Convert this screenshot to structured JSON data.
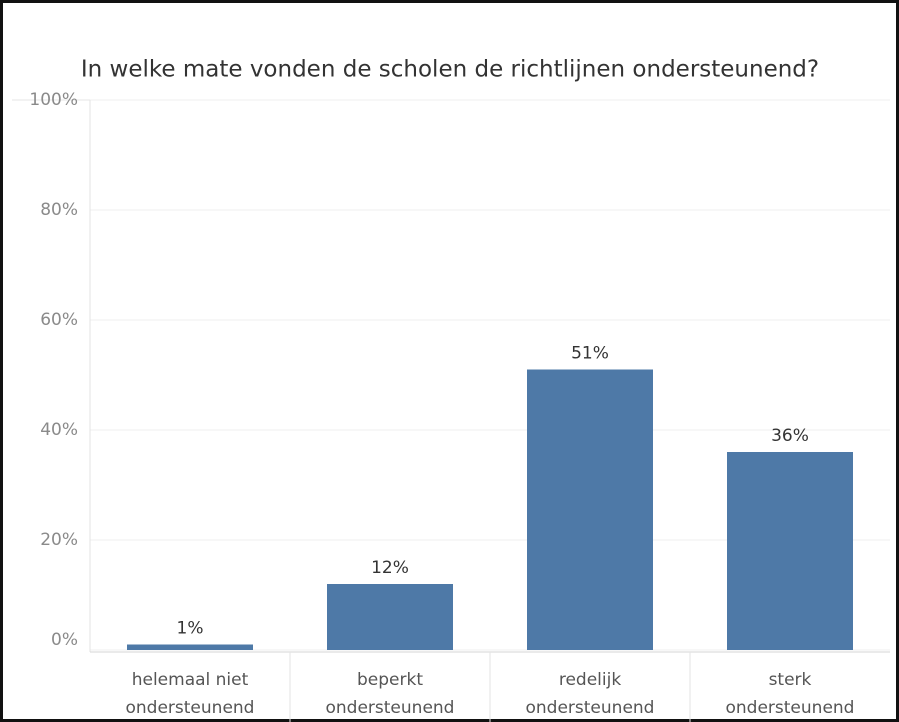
{
  "chart_data": {
    "type": "bar",
    "title": "In welke mate vonden de scholen de richtlijnen ondersteunend?",
    "categories": [
      "helemaal niet ondersteunend",
      "beperkt ondersteunend",
      "redelijk ondersteunend",
      "sterk ondersteunend"
    ],
    "values": [
      1,
      12,
      51,
      36
    ],
    "value_labels": [
      "1%",
      "12%",
      "51%",
      "36%"
    ],
    "color": "#4e79a7",
    "ylim": [
      0,
      100
    ],
    "yticks": [
      {
        "value": 0,
        "label": "0%"
      },
      {
        "value": 20,
        "label": "20%"
      },
      {
        "value": 40,
        "label": "40%"
      },
      {
        "value": 60,
        "label": "60%"
      },
      {
        "value": 80,
        "label": "80%"
      },
      {
        "value": 100,
        "label": "100%"
      }
    ],
    "grid": true
  }
}
